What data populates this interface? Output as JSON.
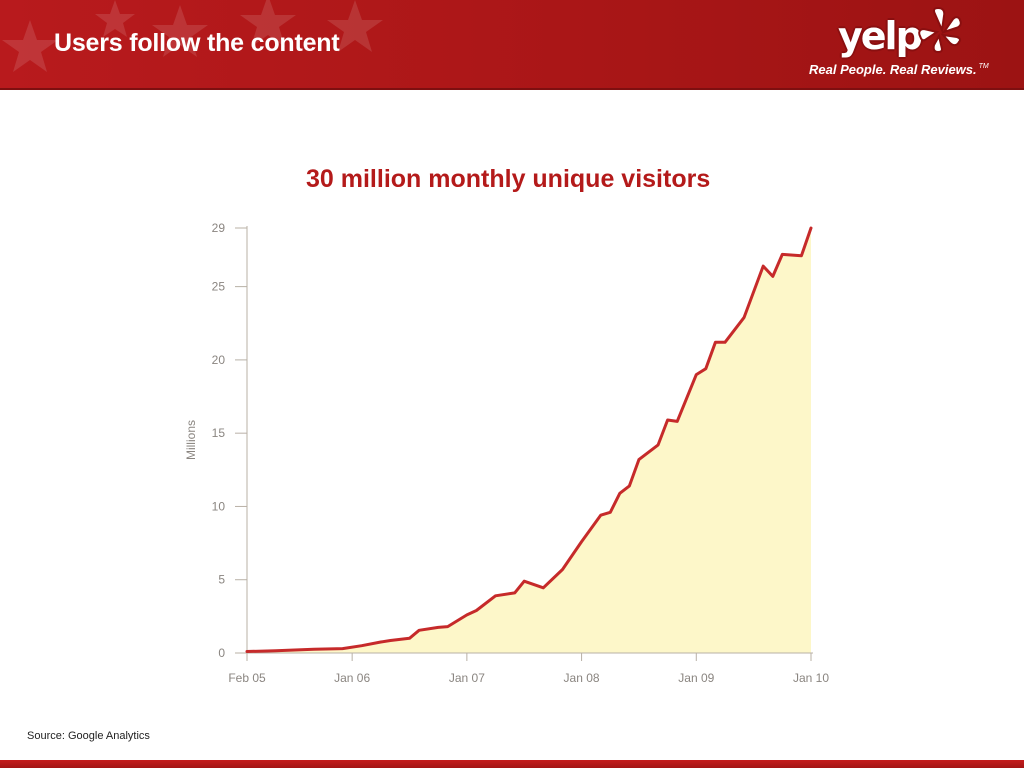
{
  "header": {
    "title": "Users follow the content",
    "logo": {
      "wordmark": "yelp",
      "tagline": "Real People. Real Reviews.",
      "trademark": "TM",
      "icon": "yelp-burst-icon"
    }
  },
  "colors": {
    "header_red": "#ad1718",
    "line_red": "#c62a2a",
    "area_fill": "#fdf7c9",
    "heading_red": "#b41a1a"
  },
  "main": {
    "chart_heading": "30 million monthly unique visitors",
    "source": "Source: Google Analytics"
  },
  "chart_data": {
    "type": "area",
    "ylabel": "Millions",
    "xlabel": "",
    "ylim": [
      0,
      29
    ],
    "yticks": [
      0,
      5,
      10,
      15,
      20,
      25,
      29
    ],
    "xlim": [
      "2005-02",
      "2010-01"
    ],
    "xticks": [
      {
        "label": "Feb 05",
        "date": "2005-02"
      },
      {
        "label": "Jan 06",
        "date": "2006-01"
      },
      {
        "label": "Jan 07",
        "date": "2007-01"
      },
      {
        "label": "Jan 08",
        "date": "2008-01"
      },
      {
        "label": "Jan 09",
        "date": "2009-01"
      },
      {
        "label": "Jan 10",
        "date": "2010-01"
      }
    ],
    "grid": false,
    "series": [
      {
        "points": [
          [
            "2005-02",
            0.1
          ],
          [
            "2005-05",
            0.15
          ],
          [
            "2005-09",
            0.25
          ],
          [
            "2005-12",
            0.3
          ],
          [
            "2006-02",
            0.5
          ],
          [
            "2006-04",
            0.75
          ],
          [
            "2006-05",
            0.85
          ],
          [
            "2006-07",
            1.0
          ],
          [
            "2006-08",
            1.55
          ],
          [
            "2006-10",
            1.75
          ],
          [
            "2006-11",
            1.8
          ],
          [
            "2007-01",
            2.6
          ],
          [
            "2007-02",
            2.9
          ],
          [
            "2007-04",
            3.9
          ],
          [
            "2007-06",
            4.1
          ],
          [
            "2007-07",
            4.9
          ],
          [
            "2007-09",
            4.45
          ],
          [
            "2007-11",
            5.7
          ],
          [
            "2008-01",
            7.6
          ],
          [
            "2008-03",
            9.4
          ],
          [
            "2008-04",
            9.6
          ],
          [
            "2008-05",
            10.9
          ],
          [
            "2008-06",
            11.4
          ],
          [
            "2008-07",
            13.2
          ],
          [
            "2008-09",
            14.2
          ],
          [
            "2008-10",
            15.9
          ],
          [
            "2008-11",
            15.8
          ],
          [
            "2009-01",
            19.0
          ],
          [
            "2009-02",
            19.4
          ],
          [
            "2009-03",
            21.2
          ],
          [
            "2009-04",
            21.2
          ],
          [
            "2009-06",
            22.9
          ],
          [
            "2009-08",
            26.4
          ],
          [
            "2009-09",
            25.7
          ],
          [
            "2009-10",
            27.2
          ],
          [
            "2009-12",
            27.1
          ],
          [
            "2010-01",
            29.0
          ]
        ]
      }
    ]
  }
}
